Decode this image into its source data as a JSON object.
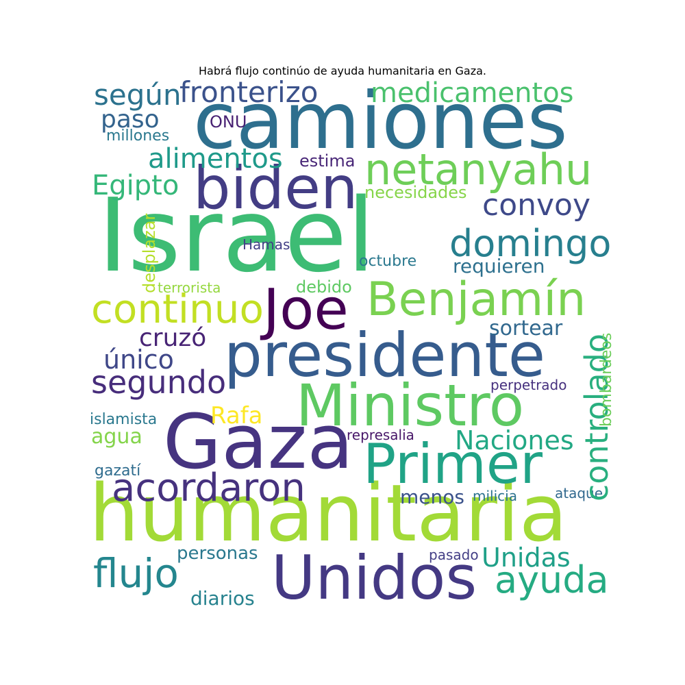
{
  "title": "Habrá flujo continúo de ayuda humanitaria en Gaza.",
  "words": {
    "israel": {
      "text": "Israel",
      "color": "#3dbc74"
    },
    "camiones": {
      "text": "camiones",
      "color": "#2e6f8e"
    },
    "humanitaria": {
      "text": "humanitaria",
      "color": "#a2da37"
    },
    "gaza": {
      "text": "Gaza",
      "color": "#463480"
    },
    "presidente": {
      "text": "presidente",
      "color": "#365c8d"
    },
    "ministro": {
      "text": "Ministro",
      "color": "#5ec962"
    },
    "unidos": {
      "text": "Unidos",
      "color": "#443983"
    },
    "biden": {
      "text": "biden",
      "color": "#433d84"
    },
    "joe": {
      "text": "Joe",
      "color": "#440154"
    },
    "primer": {
      "text": "Primer",
      "color": "#20a386"
    },
    "benjamin": {
      "text": "Benjamín",
      "color": "#7ad151"
    },
    "netanyahu": {
      "text": "netanyahu",
      "color": "#6ece58"
    },
    "continuo": {
      "text": "continuo",
      "color": "#c2df23"
    },
    "acordaron": {
      "text": "acordaron",
      "color": "#46327e"
    },
    "domingo": {
      "text": "domingo",
      "color": "#277f8e"
    },
    "flujo": {
      "text": "flujo",
      "color": "#24868e"
    },
    "ayuda": {
      "text": "ayuda",
      "color": "#25ab82"
    },
    "medicamentos": {
      "text": "medicamentos",
      "color": "#4ac16d"
    },
    "fronterizo": {
      "text": "fronterizo",
      "color": "#3b528b"
    },
    "segundo": {
      "text": "segundo",
      "color": "#472d7b"
    },
    "convoy": {
      "text": "convoy",
      "color": "#3e4989"
    },
    "controlado": {
      "text": "controlado",
      "color": "#29af7f"
    },
    "segun": {
      "text": "según",
      "color": "#2c728e"
    },
    "alimentos": {
      "text": "alimentos",
      "color": "#1f9a8a"
    },
    "egipto": {
      "text": "Egipto",
      "color": "#35b779"
    },
    "naciones": {
      "text": "Naciones",
      "color": "#22a884"
    },
    "unidas": {
      "text": "Unidas",
      "color": "#1fa088"
    },
    "cruzo": {
      "text": "cruzó",
      "color": "#482475"
    },
    "unico": {
      "text": "único",
      "color": "#3f4788"
    },
    "paso": {
      "text": "paso",
      "color": "#33638d"
    },
    "rafa": {
      "text": "Rafa",
      "color": "#fde725"
    },
    "agua": {
      "text": "agua",
      "color": "#84d44b"
    },
    "sortear": {
      "text": "sortear",
      "color": "#31688e"
    },
    "requieren": {
      "text": "requieren",
      "color": "#2d708e"
    },
    "menos": {
      "text": "menos",
      "color": "#3b528b"
    },
    "diarios": {
      "text": "diarios",
      "color": "#26828e"
    },
    "personas": {
      "text": "personas",
      "color": "#2a788e"
    },
    "estima": {
      "text": "estima",
      "color": "#482677"
    },
    "necesidades": {
      "text": "necesidades",
      "color": "#86d549"
    },
    "desplazar": {
      "text": "desplazar",
      "color": "#b5de2b"
    },
    "bombardeos": {
      "text": "bombardeos",
      "color": "#6ccd5a"
    },
    "octubre": {
      "text": "octubre",
      "color": "#2a788e"
    },
    "debido": {
      "text": "debido",
      "color": "#5ec962"
    },
    "terrorista": {
      "text": "terrorista",
      "color": "#95d840"
    },
    "hamas": {
      "text": "Hamas",
      "color": "#423f85"
    },
    "onu": {
      "text": "ONU",
      "color": "#482173"
    },
    "millones": {
      "text": "millones",
      "color": "#2a788e"
    },
    "perpetrado": {
      "text": "perpetrado",
      "color": "#46307e"
    },
    "islamista": {
      "text": "islamista",
      "color": "#2a788e"
    },
    "represalia": {
      "text": "represalia",
      "color": "#481769"
    },
    "gazati": {
      "text": "gazatí",
      "color": "#2f6c8e"
    },
    "milicia": {
      "text": "milicia",
      "color": "#2c728e"
    },
    "ataque": {
      "text": "ataque",
      "color": "#31688e"
    },
    "pasado": {
      "text": "pasado",
      "color": "#433e85"
    }
  }
}
